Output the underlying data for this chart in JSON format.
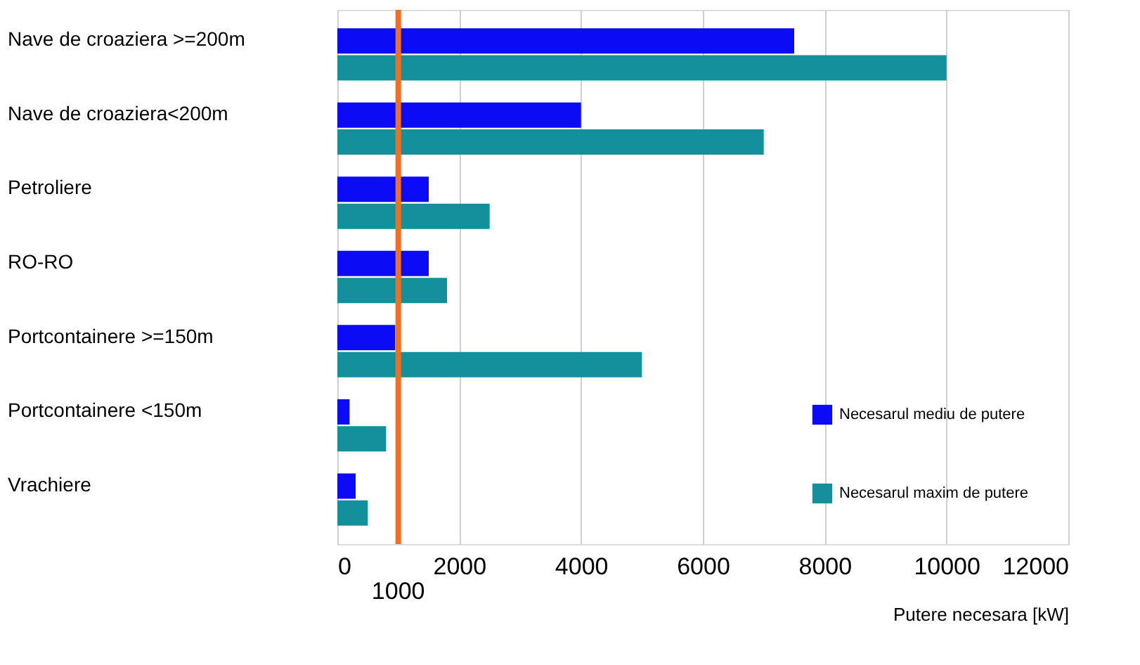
{
  "chart_data": {
    "type": "bar",
    "orientation": "horizontal",
    "xlabel": "Putere necesara [kW]",
    "categories": [
      "Nave de croaziera >=200m",
      "Nave de croaziera<200m",
      "Petroliere",
      "RO-RO",
      "Portcontainere >=150m",
      "Portcontainere <150m",
      "Vrachiere"
    ],
    "series": [
      {
        "name": "Necesarul mediu de putere",
        "color": "#0b0bf5",
        "values": [
          7500,
          4000,
          1500,
          1500,
          950,
          200,
          300
        ]
      },
      {
        "name": "Necesarul maxim de putere",
        "color": "#14909c",
        "values": [
          10000,
          7000,
          2500,
          1800,
          5000,
          800,
          500
        ]
      }
    ],
    "xlim": [
      0,
      12000
    ],
    "xticks": [
      0,
      2000,
      4000,
      6000,
      8000,
      10000,
      12000
    ],
    "ref_lines": [
      {
        "axis": "x",
        "value": 1000,
        "label": "1000",
        "color": "#f07020"
      }
    ],
    "grid": "x",
    "legend": "bottom right"
  }
}
